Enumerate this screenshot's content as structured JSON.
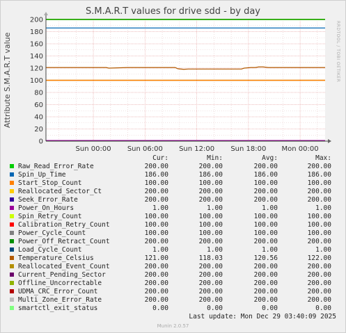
{
  "chart_data": {
    "type": "line",
    "title": "S.M.A.R.T values for drive sdd - by day",
    "ylabel": "Attribute S.M.A.R.T value",
    "ylim": [
      0,
      200
    ],
    "yticks": [
      0,
      20,
      40,
      60,
      80,
      100,
      120,
      140,
      160,
      180,
      200
    ],
    "xlabels": [
      "Sun 00:00",
      "Sun 06:00",
      "Sun 12:00",
      "Sun 18:00",
      "Mon 00:00"
    ],
    "xlabel_hours": [
      0,
      6,
      12,
      18,
      24
    ],
    "x_range_hours": [
      -5.5,
      26.9
    ],
    "grid": true,
    "legend_columns": [
      "Cur:",
      "Min:",
      "Avg:",
      "Max:"
    ],
    "series": [
      {
        "name": "Raw_Read_Error_Rate",
        "color": "#00cc00",
        "cur": "200.00",
        "min": "200.00",
        "avg": "200.00",
        "max": "200.00",
        "values": [
          200
        ]
      },
      {
        "name": "Spin_Up_Time",
        "color": "#0066b3",
        "cur": "186.00",
        "min": "186.00",
        "avg": "186.00",
        "max": "186.00",
        "values": [
          186
        ]
      },
      {
        "name": "Start_Stop_Count",
        "color": "#ff8000",
        "cur": "100.00",
        "min": "100.00",
        "avg": "100.00",
        "max": "100.00",
        "values": [
          100
        ]
      },
      {
        "name": "Reallocated_Sector_Ct",
        "color": "#ffcc00",
        "cur": "200.00",
        "min": "200.00",
        "avg": "200.00",
        "max": "200.00",
        "values": [
          200
        ]
      },
      {
        "name": "Seek_Error_Rate",
        "color": "#330099",
        "cur": "200.00",
        "min": "200.00",
        "avg": "200.00",
        "max": "200.00",
        "values": [
          200
        ]
      },
      {
        "name": "Power_On_Hours",
        "color": "#990099",
        "cur": "1.00",
        "min": "1.00",
        "avg": "1.00",
        "max": "1.00",
        "values": [
          1
        ]
      },
      {
        "name": "Spin_Retry_Count",
        "color": "#ccff00",
        "cur": "100.00",
        "min": "100.00",
        "avg": "100.00",
        "max": "100.00",
        "values": [
          100
        ]
      },
      {
        "name": "Calibration_Retry_Count",
        "color": "#ff0000",
        "cur": "100.00",
        "min": "100.00",
        "avg": "100.00",
        "max": "100.00",
        "values": [
          100
        ]
      },
      {
        "name": "Power_Cycle_Count",
        "color": "#808080",
        "cur": "100.00",
        "min": "100.00",
        "avg": "100.00",
        "max": "100.00",
        "values": [
          100
        ]
      },
      {
        "name": "Power_Off_Retract_Count",
        "color": "#008f00",
        "cur": "200.00",
        "min": "200.00",
        "avg": "200.00",
        "max": "200.00",
        "values": [
          200
        ]
      },
      {
        "name": "Load_Cycle_Count",
        "color": "#00487d",
        "cur": "1.00",
        "min": "1.00",
        "avg": "1.00",
        "max": "1.00",
        "values": [
          1
        ]
      },
      {
        "name": "Temperature_Celsius",
        "color": "#b35a00",
        "cur": "121.00",
        "min": "118.03",
        "avg": "120.56",
        "max": "122.00",
        "x_hours": [
          -5.5,
          -0.5,
          0,
          1.5,
          1.8,
          4,
          8.5,
          9.5,
          9.8,
          10.5,
          11,
          13.5,
          16,
          17.2,
          17.5,
          18.3,
          18.8,
          19.2,
          19.7,
          20.3,
          20.8,
          22,
          26.9
        ],
        "values": [
          121,
          121,
          121,
          121,
          120,
          121,
          121,
          121,
          119,
          118,
          118.5,
          118.5,
          118.5,
          118.5,
          120,
          121,
          121,
          122,
          122,
          121,
          121,
          121,
          121
        ]
      },
      {
        "name": "Reallocated_Event_Count",
        "color": "#b38f00",
        "cur": "200.00",
        "min": "200.00",
        "avg": "200.00",
        "max": "200.00",
        "values": [
          200
        ]
      },
      {
        "name": "Current_Pending_Sector",
        "color": "#6b006b",
        "cur": "200.00",
        "min": "200.00",
        "avg": "200.00",
        "max": "200.00",
        "values": [
          200
        ]
      },
      {
        "name": "Offline_Uncorrectable",
        "color": "#8fb300",
        "cur": "200.00",
        "min": "200.00",
        "avg": "200.00",
        "max": "200.00",
        "values": [
          200
        ]
      },
      {
        "name": "UDMA_CRC_Error_Count",
        "color": "#b30000",
        "cur": "200.00",
        "min": "200.00",
        "avg": "200.00",
        "max": "200.00",
        "values": [
          200
        ]
      },
      {
        "name": "Multi_Zone_Error_Rate",
        "color": "#bebebe",
        "cur": "200.00",
        "min": "200.00",
        "avg": "200.00",
        "max": "200.00",
        "values": [
          200
        ]
      },
      {
        "name": "smartctl_exit_status",
        "color": "#80ff80",
        "cur": "0.00",
        "min": "0.00",
        "avg": "0.00",
        "max": "0.00",
        "values": [
          0
        ]
      }
    ]
  },
  "last_update": "Last update: Mon Dec 29 03:40:09 2025",
  "vendor_text": "RRDTOOL / TOBI OETIKER",
  "footer": "Munin 2.0.57"
}
